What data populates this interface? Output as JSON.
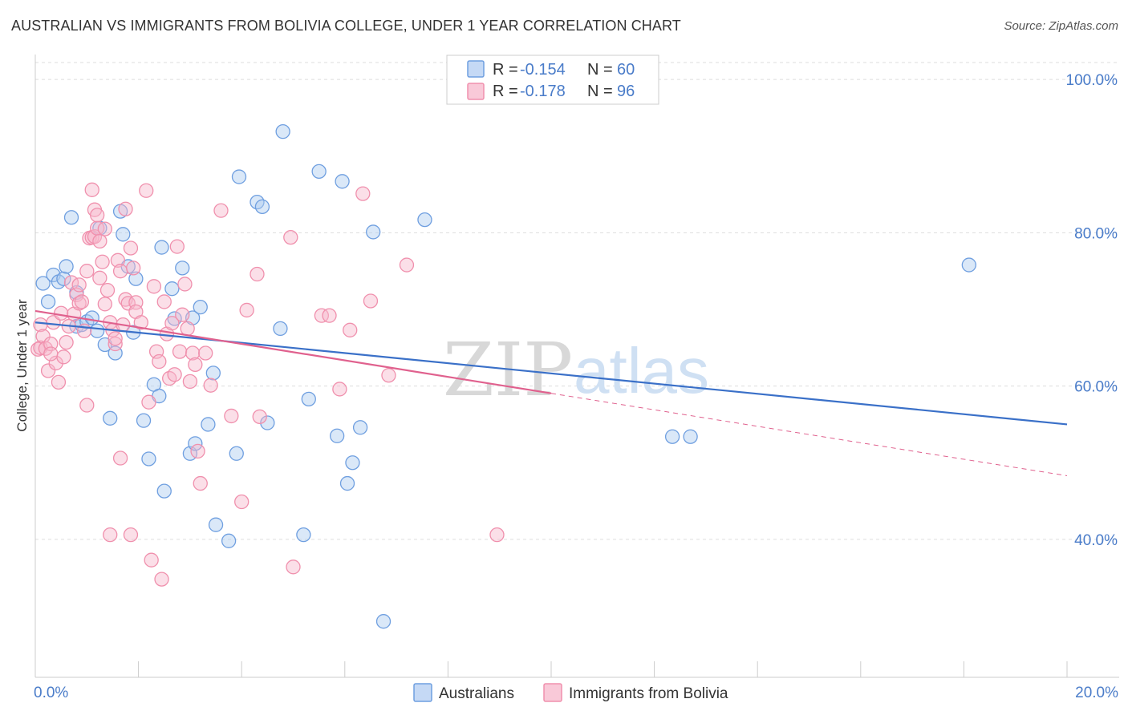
{
  "title": "AUSTRALIAN VS IMMIGRANTS FROM BOLIVIA COLLEGE, UNDER 1 YEAR CORRELATION CHART",
  "source": "Source: ZipAtlas.com",
  "watermark": {
    "zip": "ZIP",
    "atlas": "atlas"
  },
  "colors": {
    "blue": "#6f9fe0",
    "blue_line": "#3a70c8",
    "pink": "#f090ad",
    "pink_line": "#e0618e",
    "grid": "#dddddd",
    "tick_label": "#4a7cc9"
  },
  "legend": {
    "items": [
      {
        "r_label": "R =",
        "r_value": "-0.154",
        "n_label": "N =",
        "n_value": "60"
      },
      {
        "r_label": "R =",
        "r_value": "-0.178",
        "n_label": "N =",
        "n_value": "96"
      }
    ]
  },
  "chart_data": {
    "type": "scatter",
    "xlabel": "",
    "ylabel": "College, Under 1 year",
    "xlim": [
      0,
      20
    ],
    "ylim": [
      22,
      102
    ],
    "x_tick_labels": [
      {
        "value": 0,
        "label": "0.0%"
      },
      {
        "value": 20,
        "label": "20.0%"
      }
    ],
    "x_minor_ticks": [
      0,
      2,
      4,
      6,
      8,
      10,
      12,
      14,
      16,
      18,
      20
    ],
    "y_ticks": [
      {
        "value": 100,
        "label": "100.0%"
      },
      {
        "value": 80,
        "label": "80.0%"
      },
      {
        "value": 60,
        "label": "60.0%"
      },
      {
        "value": 40,
        "label": "40.0%"
      }
    ],
    "grid": true,
    "legend_placement": "top-center",
    "series": [
      {
        "name": "Australians",
        "color": "#6f9fe0",
        "trend": {
          "x": [
            0,
            20
          ],
          "y": [
            68.3,
            55.0
          ],
          "dashed_from": null
        },
        "points": [
          [
            0.15,
            73.4
          ],
          [
            0.25,
            71.0
          ],
          [
            0.35,
            74.5
          ],
          [
            0.45,
            73.6
          ],
          [
            0.55,
            74.0
          ],
          [
            0.6,
            75.6
          ],
          [
            0.7,
            82.0
          ],
          [
            0.8,
            72.2
          ],
          [
            0.8,
            67.8
          ],
          [
            0.9,
            68.0
          ],
          [
            1.0,
            68.4
          ],
          [
            1.1,
            68.9
          ],
          [
            1.2,
            67.2
          ],
          [
            1.25,
            80.6
          ],
          [
            1.35,
            65.4
          ],
          [
            1.45,
            55.8
          ],
          [
            1.55,
            64.3
          ],
          [
            1.65,
            82.8
          ],
          [
            1.7,
            79.8
          ],
          [
            1.8,
            75.6
          ],
          [
            1.9,
            67.0
          ],
          [
            1.95,
            74.0
          ],
          [
            2.1,
            55.5
          ],
          [
            2.2,
            50.5
          ],
          [
            2.3,
            60.2
          ],
          [
            2.4,
            58.7
          ],
          [
            2.45,
            78.1
          ],
          [
            2.5,
            46.3
          ],
          [
            2.65,
            72.7
          ],
          [
            2.7,
            68.8
          ],
          [
            2.85,
            75.4
          ],
          [
            3.0,
            51.2
          ],
          [
            3.05,
            68.9
          ],
          [
            3.1,
            52.5
          ],
          [
            3.2,
            70.3
          ],
          [
            3.35,
            55.0
          ],
          [
            3.45,
            61.7
          ],
          [
            3.5,
            41.9
          ],
          [
            3.75,
            39.8
          ],
          [
            3.9,
            51.2
          ],
          [
            3.95,
            87.3
          ],
          [
            4.3,
            84.0
          ],
          [
            4.4,
            83.4
          ],
          [
            4.5,
            55.2
          ],
          [
            4.75,
            67.5
          ],
          [
            4.8,
            93.2
          ],
          [
            5.2,
            40.6
          ],
          [
            5.3,
            58.3
          ],
          [
            5.5,
            88.0
          ],
          [
            5.85,
            53.5
          ],
          [
            5.95,
            86.7
          ],
          [
            6.05,
            47.3
          ],
          [
            6.15,
            50.0
          ],
          [
            6.3,
            54.6
          ],
          [
            6.55,
            80.1
          ],
          [
            6.75,
            29.3
          ],
          [
            7.55,
            81.7
          ],
          [
            12.35,
            53.4
          ],
          [
            12.7,
            53.4
          ],
          [
            18.1,
            75.8
          ]
        ]
      },
      {
        "name": "Immigrants from Bolivia",
        "color": "#f090ad",
        "trend": {
          "x": [
            0,
            20
          ],
          "y": [
            69.8,
            48.3
          ],
          "dashed_from": 10
        },
        "points": [
          [
            0.05,
            64.8
          ],
          [
            0.1,
            68.0
          ],
          [
            0.1,
            65.0
          ],
          [
            0.15,
            66.5
          ],
          [
            0.2,
            64.9
          ],
          [
            0.25,
            62.0
          ],
          [
            0.3,
            65.5
          ],
          [
            0.35,
            68.3
          ],
          [
            0.4,
            63.0
          ],
          [
            0.45,
            60.5
          ],
          [
            0.5,
            69.5
          ],
          [
            0.55,
            63.8
          ],
          [
            0.6,
            65.7
          ],
          [
            0.65,
            67.8
          ],
          [
            0.7,
            73.5
          ],
          [
            0.75,
            69.4
          ],
          [
            0.8,
            71.9
          ],
          [
            0.85,
            70.8
          ],
          [
            0.9,
            71.0
          ],
          [
            0.95,
            67.2
          ],
          [
            1.0,
            75.0
          ],
          [
            1.05,
            79.3
          ],
          [
            1.1,
            79.4
          ],
          [
            1.15,
            79.5
          ],
          [
            1.2,
            80.6
          ],
          [
            1.25,
            74.1
          ],
          [
            1.3,
            76.2
          ],
          [
            1.35,
            70.7
          ],
          [
            1.4,
            72.5
          ],
          [
            1.45,
            68.3
          ],
          [
            1.5,
            67.3
          ],
          [
            1.55,
            65.5
          ],
          [
            1.6,
            76.4
          ],
          [
            1.65,
            75.0
          ],
          [
            1.7,
            68.0
          ],
          [
            1.75,
            71.3
          ],
          [
            1.8,
            70.8
          ],
          [
            1.85,
            78.0
          ],
          [
            1.9,
            75.4
          ],
          [
            1.95,
            70.9
          ],
          [
            1.0,
            57.5
          ],
          [
            1.1,
            85.6
          ],
          [
            1.15,
            83.0
          ],
          [
            1.2,
            82.3
          ],
          [
            1.25,
            78.9
          ],
          [
            1.35,
            80.5
          ],
          [
            1.45,
            40.6
          ],
          [
            1.55,
            66.2
          ],
          [
            1.65,
            50.6
          ],
          [
            1.75,
            83.1
          ],
          [
            1.85,
            40.6
          ],
          [
            1.95,
            69.7
          ],
          [
            2.05,
            68.3
          ],
          [
            2.15,
            85.5
          ],
          [
            2.2,
            57.9
          ],
          [
            2.25,
            37.3
          ],
          [
            2.3,
            73.0
          ],
          [
            2.35,
            64.5
          ],
          [
            2.4,
            63.2
          ],
          [
            2.45,
            34.8
          ],
          [
            2.5,
            71.0
          ],
          [
            2.55,
            66.8
          ],
          [
            2.6,
            61.0
          ],
          [
            2.65,
            68.2
          ],
          [
            2.7,
            61.5
          ],
          [
            2.75,
            78.2
          ],
          [
            2.8,
            64.5
          ],
          [
            2.85,
            69.3
          ],
          [
            2.9,
            73.3
          ],
          [
            2.95,
            67.5
          ],
          [
            3.0,
            60.6
          ],
          [
            3.05,
            64.3
          ],
          [
            3.1,
            62.8
          ],
          [
            3.15,
            51.5
          ],
          [
            3.2,
            47.3
          ],
          [
            3.3,
            64.3
          ],
          [
            3.4,
            60.1
          ],
          [
            3.6,
            82.9
          ],
          [
            3.8,
            56.1
          ],
          [
            4.0,
            44.9
          ],
          [
            4.1,
            69.9
          ],
          [
            4.3,
            74.6
          ],
          [
            4.35,
            56.0
          ],
          [
            4.95,
            79.4
          ],
          [
            5.0,
            36.4
          ],
          [
            5.55,
            69.2
          ],
          [
            5.7,
            69.2
          ],
          [
            5.9,
            59.6
          ],
          [
            6.1,
            67.3
          ],
          [
            6.35,
            85.1
          ],
          [
            6.5,
            71.1
          ],
          [
            6.85,
            61.4
          ],
          [
            7.2,
            75.8
          ],
          [
            8.95,
            40.6
          ],
          [
            0.3,
            64.2
          ],
          [
            0.85,
            73.2
          ]
        ]
      }
    ]
  }
}
